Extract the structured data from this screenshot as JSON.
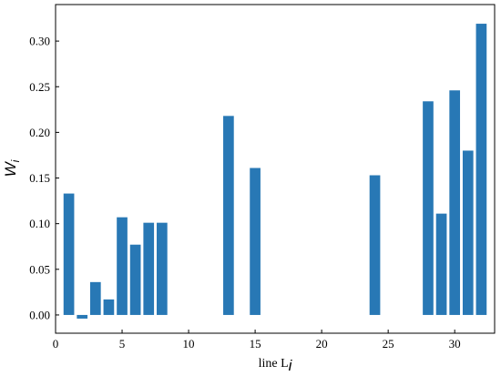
{
  "chart_data": {
    "type": "bar",
    "xlabel": "line L",
    "xlabel_sub": "i",
    "ylabel": "W",
    "ylabel_sub": "i",
    "xlim": [
      0,
      33
    ],
    "ylim": [
      -0.02,
      0.34
    ],
    "xticks": [
      0,
      5,
      10,
      15,
      20,
      25,
      30
    ],
    "xtick_labels": [
      "0",
      "5",
      "10",
      "15",
      "20",
      "25",
      "30"
    ],
    "yticks": [
      0.0,
      0.05,
      0.1,
      0.15,
      0.2,
      0.25,
      0.3
    ],
    "ytick_labels": [
      "0.00",
      "0.05",
      "0.10",
      "0.15",
      "0.20",
      "0.25",
      "0.30"
    ],
    "bar_color": "#2878b5",
    "grid": false,
    "x": [
      1,
      2,
      3,
      4,
      5,
      6,
      7,
      8,
      13,
      15,
      24,
      28,
      29,
      30,
      31,
      32
    ],
    "values": [
      0.133,
      -0.004,
      0.036,
      0.017,
      0.107,
      0.077,
      0.101,
      0.101,
      0.218,
      0.161,
      0.153,
      0.234,
      0.111,
      0.246,
      0.18,
      0.319
    ]
  }
}
